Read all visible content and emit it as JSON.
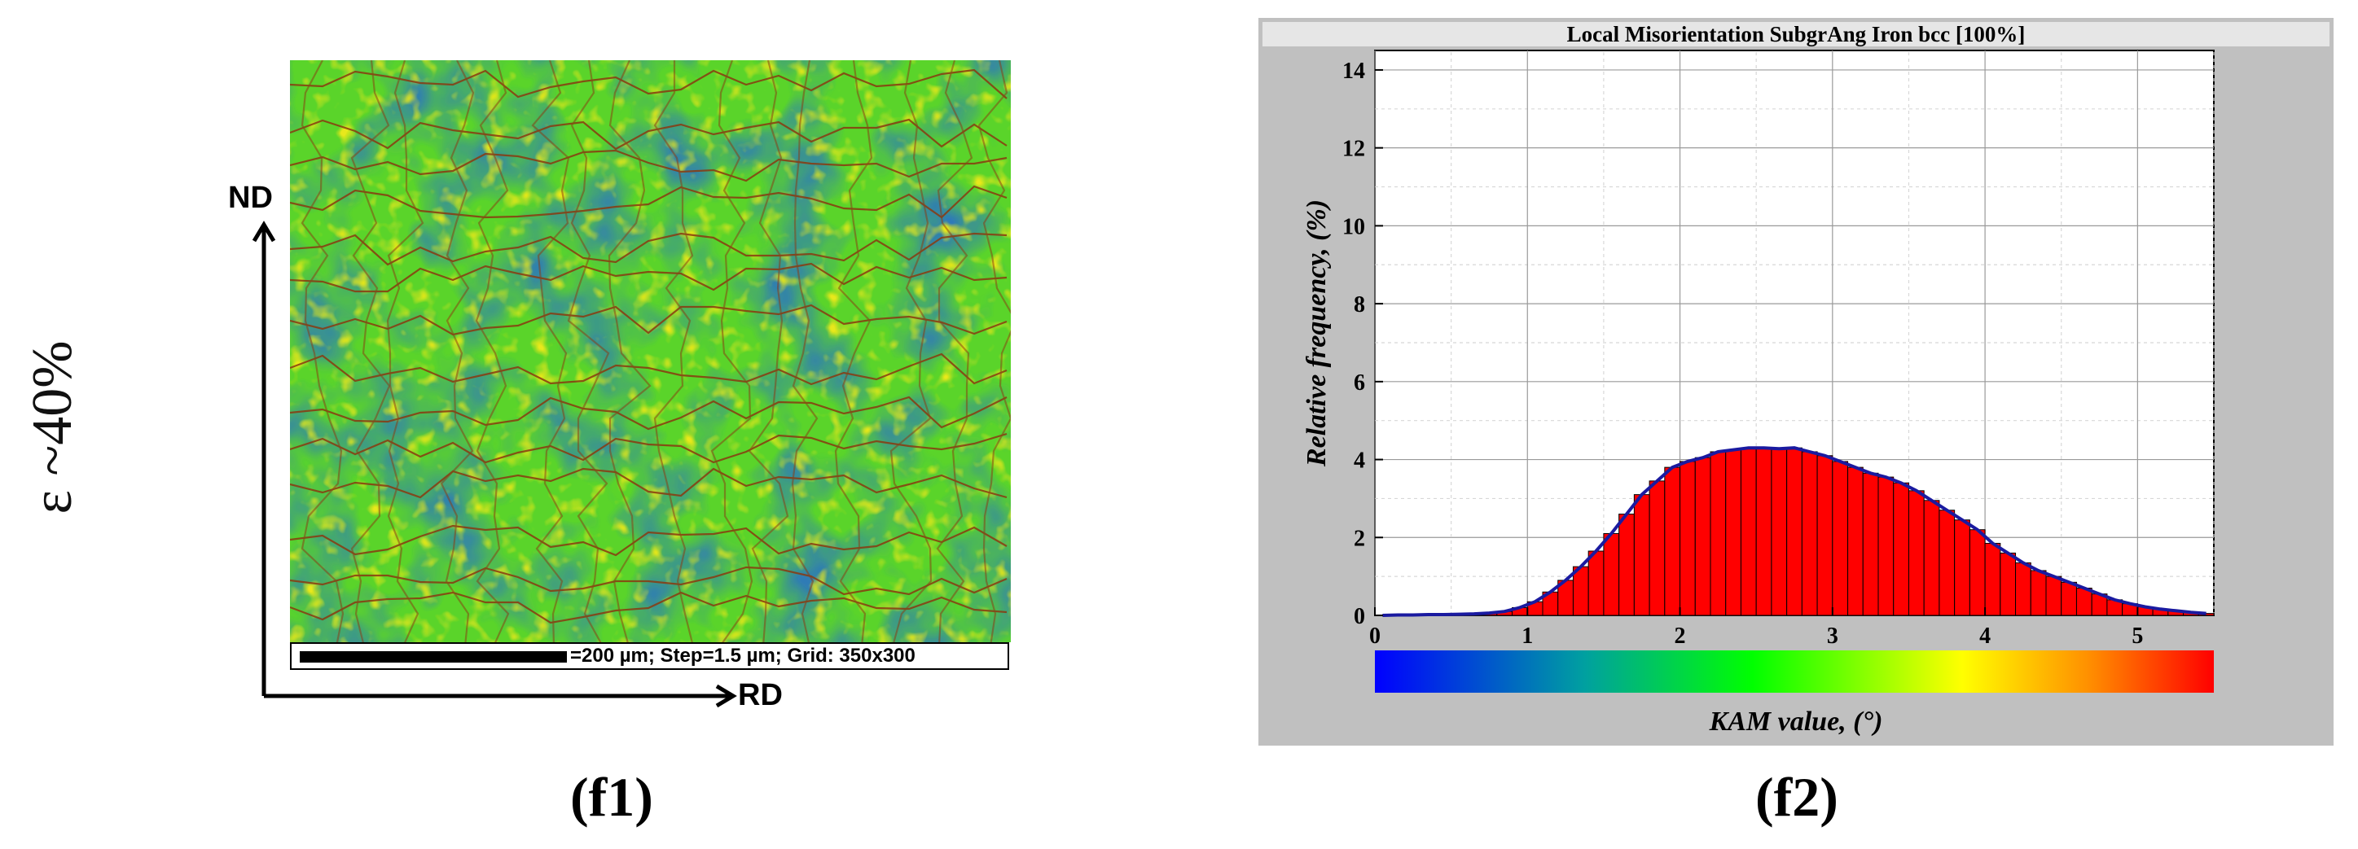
{
  "left_panel": {
    "strain_label": "ε ~40%",
    "axis_nd": "ND",
    "axis_rd": "RD",
    "scalebar_text": "=200 µm; Step=1.5 µm; Grid: 350x300",
    "caption": "(f1)"
  },
  "right_panel": {
    "caption": "(f2)"
  },
  "colors": {
    "bar_fill": "#ff0000",
    "outline": "#1a1aa0",
    "panel_bg": "#c0c0c0",
    "colorbar_stops": [
      "#0000ff",
      "#00ff00",
      "#ffff00",
      "#ff0000"
    ]
  },
  "chart_data": {
    "type": "bar",
    "title": "Local Misorientation SubgrAng  Iron bcc [100%]",
    "xlabel": "KAM value, (°)",
    "ylabel": "Relative frequency, (%)",
    "xlim": [
      0,
      5.5
    ],
    "ylim": [
      0,
      14.5
    ],
    "xticks": [
      "0",
      "1",
      "2",
      "3",
      "4",
      "5"
    ],
    "yticks": [
      "0",
      "2",
      "4",
      "6",
      "8",
      "10",
      "12",
      "14"
    ],
    "grid": true,
    "colorbar": true,
    "bin_width": 0.1,
    "x": [
      0.05,
      0.15,
      0.25,
      0.35,
      0.45,
      0.55,
      0.65,
      0.75,
      0.85,
      0.95,
      1.05,
      1.15,
      1.25,
      1.35,
      1.45,
      1.55,
      1.65,
      1.75,
      1.85,
      1.95,
      2.05,
      2.15,
      2.25,
      2.35,
      2.45,
      2.55,
      2.65,
      2.75,
      2.85,
      2.95,
      3.05,
      3.15,
      3.25,
      3.35,
      3.45,
      3.55,
      3.65,
      3.75,
      3.85,
      3.95,
      4.05,
      4.15,
      4.25,
      4.35,
      4.45,
      4.55,
      4.65,
      4.75,
      4.85,
      4.95,
      5.05,
      5.15,
      5.25,
      5.35,
      5.45
    ],
    "values": [
      0.0,
      0.01,
      0.01,
      0.02,
      0.02,
      0.03,
      0.04,
      0.06,
      0.1,
      0.2,
      0.35,
      0.6,
      0.9,
      1.25,
      1.65,
      2.1,
      2.6,
      3.1,
      3.45,
      3.8,
      3.95,
      4.05,
      4.2,
      4.25,
      4.3,
      4.3,
      4.28,
      4.3,
      4.2,
      4.1,
      3.95,
      3.8,
      3.65,
      3.55,
      3.4,
      3.2,
      2.95,
      2.7,
      2.45,
      2.2,
      1.85,
      1.6,
      1.35,
      1.15,
      1.0,
      0.85,
      0.7,
      0.55,
      0.4,
      0.3,
      0.22,
      0.16,
      0.12,
      0.08,
      0.05
    ]
  }
}
